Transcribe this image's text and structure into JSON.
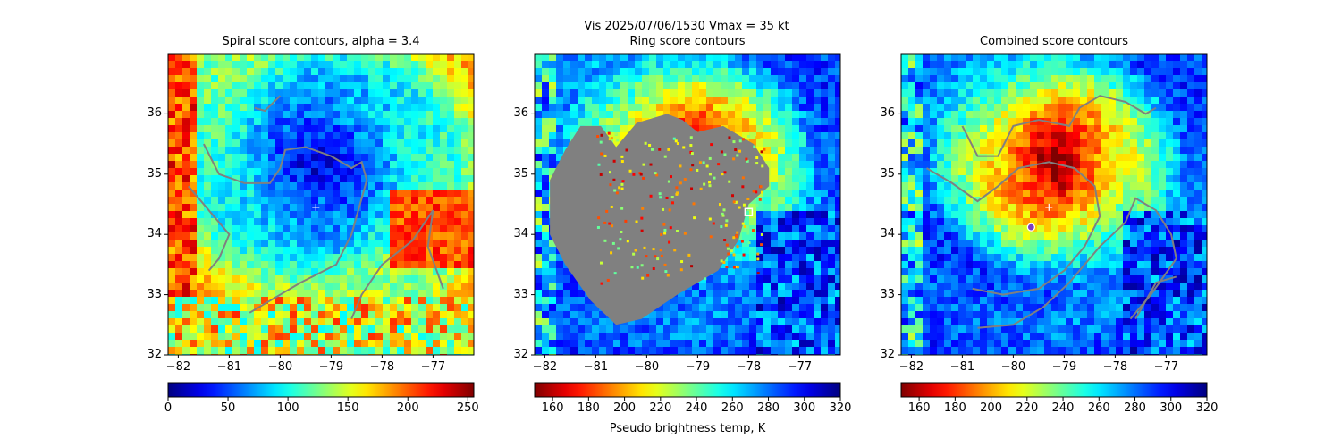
{
  "figure": {
    "suptitle_line1": "Vis  2025/07/06/1530    Vmax = 35 kt",
    "colorbar_label": "Pseudo brightness temp, K"
  },
  "colors": {
    "storm_center_marker": "#ffffff",
    "score_contour": "#808080",
    "ring_mask": "#808080",
    "ring_center_marker": "#ffffff",
    "combined_marker_fill": "#7b3fbf",
    "combined_marker_edge": "#ffffff"
  },
  "chart_data": [
    {
      "type": "heatmap",
      "title": "Spiral score contours, alpha =  3.4",
      "xlim": [
        -82.2,
        -76.2
      ],
      "ylim": [
        32,
        37
      ],
      "xticks": [
        -82,
        -81,
        -80,
        -79,
        -78,
        -77
      ],
      "xtick_labels": [
        "−82",
        "−81",
        "−80",
        "−79",
        "−78",
        "−77"
      ],
      "yticks": [
        32,
        33,
        34,
        35,
        36
      ],
      "ytick_labels": [
        "32",
        "33",
        "34",
        "35",
        "36"
      ],
      "storm_center": {
        "lon": -79.3,
        "lat": 34.45
      },
      "colorbar": {
        "cmap": "jet",
        "reversed": false,
        "range": [
          0,
          255
        ],
        "ticks": [
          0,
          50,
          100,
          150,
          200,
          250
        ],
        "tick_labels": [
          "0",
          "50",
          "100",
          "150",
          "200",
          "250"
        ]
      },
      "contours": [
        [
          [
            -80.5,
            36.1
          ],
          [
            -80.3,
            36.05
          ],
          [
            -80.0,
            36.3
          ]
        ],
        [
          [
            -81.5,
            35.5
          ],
          [
            -81.2,
            35.0
          ],
          [
            -80.7,
            34.85
          ],
          [
            -80.2,
            34.85
          ],
          [
            -80.0,
            35.1
          ],
          [
            -79.9,
            35.4
          ],
          [
            -79.5,
            35.45
          ],
          [
            -79.0,
            35.3
          ],
          [
            -78.6,
            35.1
          ],
          [
            -78.4,
            35.2
          ],
          [
            -78.3,
            34.9
          ],
          [
            -78.6,
            34.0
          ],
          [
            -78.9,
            33.5
          ],
          [
            -79.6,
            33.2
          ],
          [
            -80.2,
            32.9
          ],
          [
            -80.6,
            32.7
          ]
        ],
        [
          [
            -81.8,
            34.8
          ],
          [
            -81.4,
            34.4
          ],
          [
            -81.0,
            34.0
          ],
          [
            -81.2,
            33.6
          ],
          [
            -81.4,
            33.4
          ]
        ],
        [
          [
            -78.6,
            32.6
          ],
          [
            -78.4,
            33.0
          ],
          [
            -78.0,
            33.5
          ],
          [
            -77.4,
            33.9
          ],
          [
            -77.0,
            34.4
          ],
          [
            -77.1,
            33.8
          ],
          [
            -76.8,
            33.1
          ]
        ]
      ]
    },
    {
      "type": "heatmap",
      "title": "Ring score contours",
      "xlim": [
        -82.2,
        -76.2
      ],
      "ylim": [
        32,
        37
      ],
      "xticks": [
        -82,
        -81,
        -80,
        -79,
        -78,
        -77
      ],
      "xtick_labels": [
        "−82",
        "−81",
        "−80",
        "−79",
        "−78",
        "−77"
      ],
      "yticks": [
        32,
        33,
        34,
        35,
        36
      ],
      "ytick_labels": [
        "32",
        "33",
        "34",
        "35",
        "36"
      ],
      "ring_center": {
        "lon": -78.0,
        "lat": 34.37
      },
      "colorbar": {
        "cmap": "jet",
        "reversed": true,
        "range": [
          150,
          320
        ],
        "ticks": [
          160,
          180,
          200,
          220,
          240,
          260,
          280,
          300,
          320
        ],
        "tick_labels": [
          "160",
          "180",
          "200",
          "220",
          "240",
          "260",
          "280",
          "300",
          "320"
        ]
      },
      "mask_outline": [
        [
          -81.3,
          35.8
        ],
        [
          -80.9,
          35.8
        ],
        [
          -80.6,
          35.45
        ],
        [
          -80.2,
          35.85
        ],
        [
          -79.6,
          36.0
        ],
        [
          -79.3,
          35.9
        ],
        [
          -79.0,
          35.7
        ],
        [
          -78.5,
          35.8
        ],
        [
          -77.9,
          35.5
        ],
        [
          -77.6,
          35.1
        ],
        [
          -77.6,
          34.8
        ],
        [
          -78.0,
          34.5
        ],
        [
          -78.2,
          33.9
        ],
        [
          -78.6,
          33.4
        ],
        [
          -79.4,
          33.0
        ],
        [
          -80.1,
          32.6
        ],
        [
          -80.6,
          32.5
        ],
        [
          -81.1,
          32.9
        ],
        [
          -81.6,
          33.5
        ],
        [
          -81.9,
          34.0
        ],
        [
          -81.9,
          34.9
        ],
        [
          -81.6,
          35.4
        ]
      ]
    },
    {
      "type": "heatmap",
      "title": "Combined score contours",
      "xlim": [
        -82.2,
        -76.2
      ],
      "ylim": [
        32,
        37
      ],
      "xticks": [
        -82,
        -81,
        -80,
        -79,
        -78,
        -77
      ],
      "xtick_labels": [
        "−82",
        "−81",
        "−80",
        "−79",
        "−78",
        "−77"
      ],
      "yticks": [
        32,
        33,
        34,
        35,
        36
      ],
      "ytick_labels": [
        "32",
        "33",
        "34",
        "35",
        "36"
      ],
      "storm_center": {
        "lon": -79.3,
        "lat": 34.45
      },
      "combined_center": {
        "lon": -79.65,
        "lat": 34.12
      },
      "colorbar": {
        "cmap": "jet",
        "reversed": true,
        "range": [
          150,
          320
        ],
        "ticks": [
          160,
          180,
          200,
          220,
          240,
          260,
          280,
          300,
          320
        ],
        "tick_labels": [
          "160",
          "180",
          "200",
          "220",
          "240",
          "260",
          "280",
          "300",
          "320"
        ]
      },
      "contours": [
        [
          [
            -81.0,
            35.8
          ],
          [
            -80.7,
            35.3
          ],
          [
            -80.3,
            35.3
          ],
          [
            -80.0,
            35.8
          ],
          [
            -79.5,
            35.9
          ],
          [
            -78.9,
            35.8
          ],
          [
            -78.7,
            36.1
          ],
          [
            -78.3,
            36.3
          ],
          [
            -77.8,
            36.2
          ],
          [
            -77.4,
            36.0
          ],
          [
            -77.2,
            36.1
          ]
        ],
        [
          [
            -81.7,
            35.1
          ],
          [
            -81.2,
            34.85
          ],
          [
            -80.7,
            34.55
          ],
          [
            -80.3,
            34.8
          ],
          [
            -79.9,
            35.1
          ],
          [
            -79.3,
            35.2
          ],
          [
            -78.8,
            35.1
          ],
          [
            -78.4,
            34.8
          ],
          [
            -78.3,
            34.3
          ],
          [
            -78.6,
            33.8
          ],
          [
            -79.0,
            33.4
          ],
          [
            -79.5,
            33.1
          ],
          [
            -80.2,
            33.0
          ],
          [
            -80.8,
            33.1
          ]
        ],
        [
          [
            -80.7,
            32.45
          ],
          [
            -80.0,
            32.5
          ],
          [
            -79.4,
            32.8
          ],
          [
            -78.9,
            33.2
          ],
          [
            -78.3,
            33.8
          ],
          [
            -77.8,
            34.2
          ],
          [
            -77.6,
            34.6
          ],
          [
            -77.2,
            34.4
          ],
          [
            -76.9,
            34.0
          ],
          [
            -76.8,
            33.6
          ],
          [
            -77.3,
            33.0
          ],
          [
            -77.7,
            32.6
          ]
        ],
        [
          [
            -77.6,
            32.6
          ],
          [
            -77.2,
            33.2
          ],
          [
            -76.8,
            33.3
          ]
        ]
      ]
    }
  ]
}
